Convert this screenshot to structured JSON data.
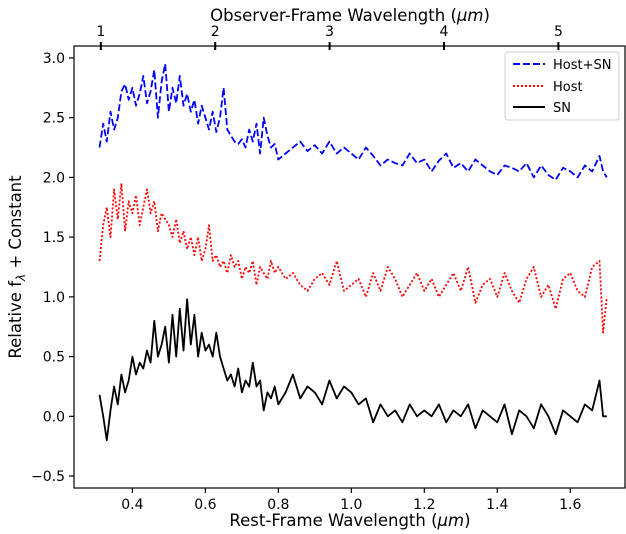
{
  "chart_data": {
    "type": "line",
    "xlabel": "Rest-Frame Wavelength (",
    "xlabel_unit": "μm",
    "xlabel_end": ")",
    "ylabel": "Relative f",
    "ylabel_sub": "λ",
    "ylabel_end": " + Constant",
    "top_xlabel": "Observer-Frame Wavelength (",
    "top_xlabel_unit": "μm",
    "top_xlabel_end": ")",
    "xlim": [
      0.24,
      1.75
    ],
    "ylim": [
      -0.6,
      3.1
    ],
    "x_ticks": [
      0.4,
      0.6,
      0.8,
      1.0,
      1.2,
      1.4,
      1.6
    ],
    "x_tick_labels": [
      "0.4",
      "0.6",
      "0.8",
      "1.0",
      "1.2",
      "1.4",
      "1.6"
    ],
    "y_ticks": [
      -0.5,
      0.0,
      0.5,
      1.0,
      1.5,
      2.0,
      2.5,
      3.0
    ],
    "y_tick_labels": [
      "−0.5",
      "0.0",
      "0.5",
      "1.0",
      "1.5",
      "2.0",
      "2.5",
      "3.0"
    ],
    "top_ticks_rest": [
      0.3135,
      0.627,
      0.9405,
      1.254,
      1.5675
    ],
    "top_tick_labels": [
      "1",
      "2",
      "3",
      "4",
      "5"
    ],
    "grid": false,
    "legend_position": "top-right",
    "series": [
      {
        "name": "Host+SN",
        "color": "#0000ff",
        "style": "dashed",
        "x": [
          0.31,
          0.32,
          0.33,
          0.34,
          0.35,
          0.36,
          0.37,
          0.38,
          0.39,
          0.4,
          0.41,
          0.42,
          0.43,
          0.44,
          0.45,
          0.46,
          0.47,
          0.48,
          0.49,
          0.5,
          0.51,
          0.52,
          0.53,
          0.54,
          0.55,
          0.56,
          0.57,
          0.58,
          0.59,
          0.6,
          0.61,
          0.62,
          0.63,
          0.64,
          0.65,
          0.66,
          0.67,
          0.68,
          0.69,
          0.7,
          0.71,
          0.72,
          0.73,
          0.74,
          0.75,
          0.76,
          0.77,
          0.78,
          0.79,
          0.8,
          0.82,
          0.84,
          0.86,
          0.88,
          0.9,
          0.92,
          0.94,
          0.96,
          0.98,
          1.0,
          1.02,
          1.04,
          1.06,
          1.08,
          1.1,
          1.12,
          1.14,
          1.16,
          1.18,
          1.2,
          1.22,
          1.24,
          1.26,
          1.28,
          1.3,
          1.32,
          1.34,
          1.36,
          1.38,
          1.4,
          1.42,
          1.44,
          1.46,
          1.48,
          1.5,
          1.52,
          1.54,
          1.56,
          1.58,
          1.6,
          1.62,
          1.64,
          1.66,
          1.68,
          1.69,
          1.7
        ],
        "y": [
          2.25,
          2.45,
          2.3,
          2.55,
          2.4,
          2.5,
          2.72,
          2.78,
          2.65,
          2.75,
          2.6,
          2.7,
          2.85,
          2.62,
          2.72,
          2.9,
          2.5,
          2.8,
          2.95,
          2.55,
          2.75,
          2.62,
          2.85,
          2.6,
          2.7,
          2.55,
          2.65,
          2.45,
          2.6,
          2.5,
          2.4,
          2.55,
          2.38,
          2.5,
          2.75,
          2.4,
          2.35,
          2.3,
          2.28,
          2.32,
          2.25,
          2.4,
          2.3,
          2.45,
          2.2,
          2.5,
          2.35,
          2.25,
          2.28,
          2.15,
          2.2,
          2.25,
          2.3,
          2.22,
          2.27,
          2.2,
          2.3,
          2.2,
          2.25,
          2.2,
          2.15,
          2.25,
          2.18,
          2.1,
          2.15,
          2.12,
          2.1,
          2.2,
          2.12,
          2.15,
          2.05,
          2.14,
          2.2,
          2.08,
          2.12,
          2.05,
          2.15,
          2.1,
          2.05,
          2.02,
          2.1,
          2.08,
          2.05,
          2.12,
          2.0,
          2.1,
          2.02,
          1.98,
          2.08,
          2.05,
          2.0,
          2.1,
          2.05,
          2.18,
          2.05,
          2.0
        ]
      },
      {
        "name": "Host",
        "color": "#ff0000",
        "style": "dotted",
        "x": [
          0.31,
          0.32,
          0.33,
          0.34,
          0.35,
          0.36,
          0.37,
          0.38,
          0.39,
          0.4,
          0.41,
          0.42,
          0.43,
          0.44,
          0.45,
          0.46,
          0.47,
          0.48,
          0.49,
          0.5,
          0.51,
          0.52,
          0.53,
          0.54,
          0.55,
          0.56,
          0.57,
          0.58,
          0.59,
          0.6,
          0.61,
          0.62,
          0.63,
          0.64,
          0.65,
          0.66,
          0.67,
          0.68,
          0.69,
          0.7,
          0.71,
          0.72,
          0.73,
          0.74,
          0.75,
          0.76,
          0.77,
          0.78,
          0.79,
          0.8,
          0.82,
          0.84,
          0.86,
          0.88,
          0.9,
          0.92,
          0.94,
          0.96,
          0.98,
          1.0,
          1.02,
          1.04,
          1.06,
          1.08,
          1.1,
          1.12,
          1.14,
          1.16,
          1.18,
          1.2,
          1.22,
          1.24,
          1.26,
          1.28,
          1.3,
          1.32,
          1.34,
          1.36,
          1.38,
          1.4,
          1.42,
          1.44,
          1.46,
          1.48,
          1.5,
          1.52,
          1.54,
          1.56,
          1.58,
          1.6,
          1.62,
          1.64,
          1.66,
          1.68,
          1.69,
          1.7
        ],
        "y": [
          1.3,
          1.6,
          1.75,
          1.5,
          1.9,
          1.65,
          1.95,
          1.55,
          1.8,
          1.7,
          1.85,
          1.6,
          1.75,
          1.9,
          1.7,
          1.8,
          1.55,
          1.7,
          1.65,
          1.6,
          1.5,
          1.65,
          1.45,
          1.55,
          1.4,
          1.5,
          1.35,
          1.5,
          1.3,
          1.4,
          1.6,
          1.3,
          1.35,
          1.25,
          1.3,
          1.2,
          1.35,
          1.25,
          1.3,
          1.15,
          1.25,
          1.2,
          1.3,
          1.1,
          1.25,
          1.2,
          1.15,
          1.3,
          1.2,
          1.25,
          1.15,
          1.2,
          1.1,
          1.05,
          1.15,
          1.2,
          1.1,
          1.3,
          1.05,
          1.1,
          1.15,
          1.0,
          1.2,
          1.05,
          1.25,
          1.15,
          1.0,
          1.1,
          1.2,
          1.05,
          1.15,
          1.0,
          1.1,
          1.2,
          1.05,
          1.25,
          0.95,
          1.1,
          1.15,
          1.0,
          1.2,
          1.05,
          0.95,
          1.15,
          1.25,
          1.0,
          1.1,
          0.9,
          1.15,
          1.2,
          1.05,
          1.0,
          1.25,
          1.3,
          0.7,
          1.0
        ]
      },
      {
        "name": "SN",
        "color": "#000000",
        "style": "solid",
        "x": [
          0.31,
          0.32,
          0.33,
          0.34,
          0.35,
          0.36,
          0.37,
          0.38,
          0.39,
          0.4,
          0.41,
          0.42,
          0.43,
          0.44,
          0.45,
          0.46,
          0.47,
          0.48,
          0.49,
          0.5,
          0.51,
          0.52,
          0.53,
          0.54,
          0.55,
          0.56,
          0.57,
          0.58,
          0.59,
          0.6,
          0.61,
          0.62,
          0.63,
          0.64,
          0.65,
          0.66,
          0.67,
          0.68,
          0.69,
          0.7,
          0.71,
          0.72,
          0.73,
          0.74,
          0.75,
          0.76,
          0.77,
          0.78,
          0.79,
          0.8,
          0.82,
          0.84,
          0.86,
          0.88,
          0.9,
          0.92,
          0.94,
          0.96,
          0.98,
          1.0,
          1.02,
          1.04,
          1.06,
          1.08,
          1.1,
          1.12,
          1.14,
          1.16,
          1.18,
          1.2,
          1.22,
          1.24,
          1.26,
          1.28,
          1.3,
          1.32,
          1.34,
          1.36,
          1.38,
          1.4,
          1.42,
          1.44,
          1.46,
          1.48,
          1.5,
          1.52,
          1.54,
          1.56,
          1.58,
          1.6,
          1.62,
          1.64,
          1.66,
          1.68,
          1.69,
          1.7
        ],
        "y": [
          0.18,
          0.0,
          -0.2,
          0.05,
          0.25,
          0.1,
          0.35,
          0.2,
          0.3,
          0.5,
          0.35,
          0.45,
          0.4,
          0.55,
          0.45,
          0.8,
          0.5,
          0.6,
          0.75,
          0.45,
          0.85,
          0.5,
          0.9,
          0.55,
          0.98,
          0.6,
          0.85,
          0.5,
          0.7,
          0.55,
          0.6,
          0.5,
          0.7,
          0.5,
          0.4,
          0.3,
          0.35,
          0.25,
          0.4,
          0.2,
          0.3,
          0.25,
          0.45,
          0.25,
          0.3,
          0.05,
          0.2,
          0.15,
          0.25,
          0.1,
          0.2,
          0.35,
          0.15,
          0.25,
          0.2,
          0.1,
          0.3,
          0.15,
          0.25,
          0.2,
          0.1,
          0.15,
          -0.05,
          0.1,
          0.0,
          0.05,
          -0.05,
          0.1,
          0.0,
          0.05,
          0.0,
          0.1,
          -0.05,
          0.05,
          0.0,
          0.1,
          -0.1,
          0.05,
          0.0,
          -0.05,
          0.1,
          -0.15,
          0.05,
          0.0,
          -0.1,
          0.1,
          0.0,
          -0.15,
          0.05,
          0.0,
          -0.05,
          0.1,
          0.05,
          0.3,
          0.0,
          0.0
        ]
      }
    ]
  }
}
